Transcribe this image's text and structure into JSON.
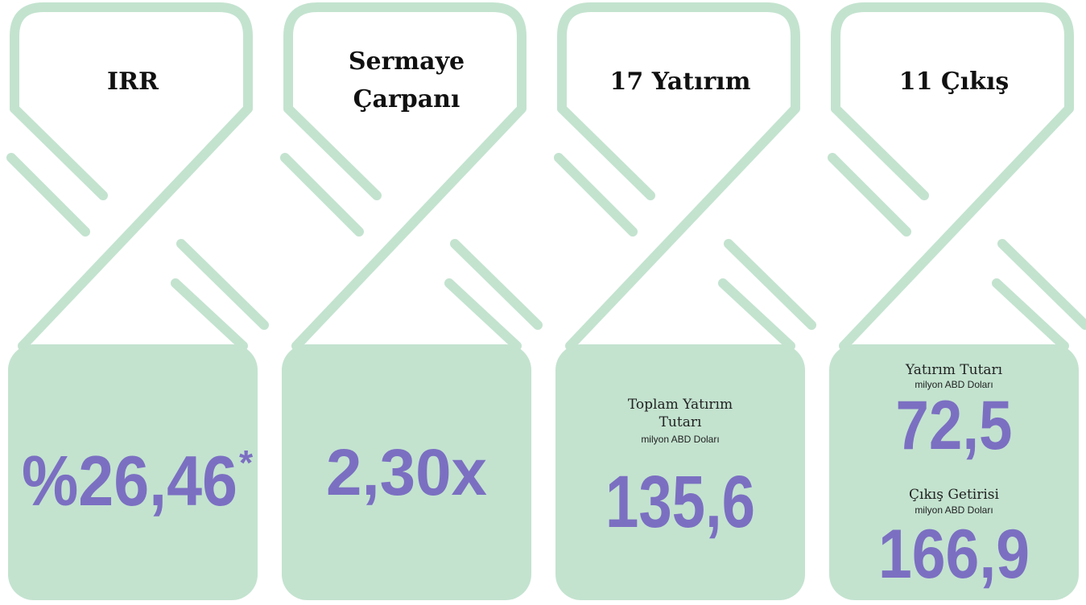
{
  "cards": [
    {
      "title": [
        "IRR"
      ],
      "value": "%26,46",
      "note": "*"
    },
    {
      "title": [
        "Sermaye",
        "Çarpanı"
      ],
      "value": "2,30x"
    },
    {
      "title": [
        "17 Yatırım"
      ],
      "label": [
        "Toplam Yatırım",
        "Tutarı"
      ],
      "unit": "milyon ABD Doları",
      "value": "135,6"
    },
    {
      "title": [
        "11 Çıkış"
      ],
      "blocks": [
        {
          "label": "Yatırım Tutarı",
          "unit": "milyon ABD Doları",
          "value": "72,5"
        },
        {
          "label": "Çıkış Getirisi",
          "unit": "milyon ABD Doları",
          "value": "166,9"
        }
      ]
    }
  ]
}
